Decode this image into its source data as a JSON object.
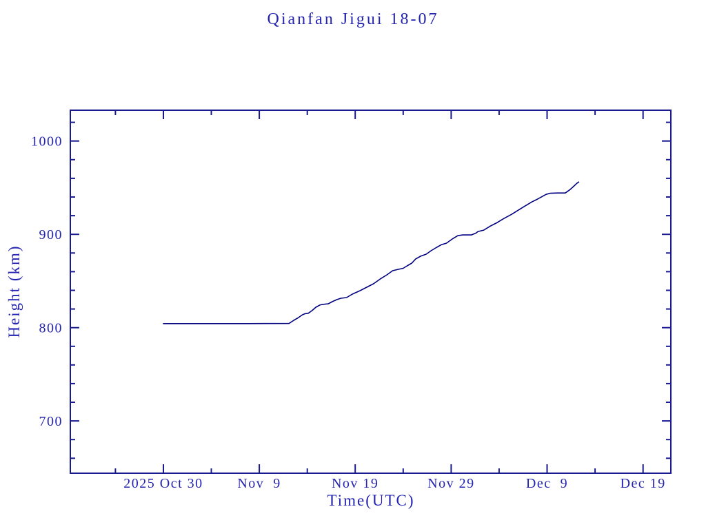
{
  "page": {
    "background": "#ffffff"
  },
  "chart": {
    "title": "Qianfan Jigui 18-07",
    "xlabel": "Time(UTC)",
    "ylabel": "Height (km)"
  },
  "colors": {
    "text": "#2424b0",
    "axis": "#1a1a90",
    "line": "#000080",
    "background": "#ffffff"
  },
  "chart_data": {
    "type": "line",
    "title": "Qianfan Jigui 18-07",
    "xlabel": "Time(UTC)",
    "ylabel": "Height (km)",
    "grid": false,
    "legend_position": "none",
    "x_axis": {
      "description": "t is in days relative to the first labeled tick (2025 Oct 30, UTC)",
      "range_days": [
        -9.7,
        52.9
      ],
      "major_ticks": [
        {
          "t": 0,
          "label": "2025 Oct 30"
        },
        {
          "t": 10,
          "label": "Nov  9"
        },
        {
          "t": 20,
          "label": "Nov 19"
        },
        {
          "t": 30,
          "label": "Nov 29"
        },
        {
          "t": 40,
          "label": "Dec  9"
        },
        {
          "t": 50,
          "label": "Dec 19"
        }
      ],
      "minor_ticks": [
        -5,
        5,
        15,
        25,
        35,
        45
      ]
    },
    "y_axis": {
      "unit": "km",
      "range": [
        644,
        1033
      ],
      "major_ticks": [
        700,
        800,
        900,
        1000
      ],
      "minor_ticks": [
        660,
        680,
        720,
        740,
        760,
        780,
        820,
        840,
        860,
        880,
        920,
        940,
        960,
        980,
        1020
      ]
    },
    "series": [
      {
        "name": "Height (km)",
        "points_t_h": [
          [
            0.0,
            804.3
          ],
          [
            4.5,
            804.3
          ],
          [
            8.8,
            804.3
          ],
          [
            13.1,
            804.5
          ],
          [
            13.6,
            807.9
          ],
          [
            14.1,
            810.9
          ],
          [
            14.5,
            813.8
          ],
          [
            14.8,
            815.0
          ],
          [
            15.1,
            815.4
          ],
          [
            15.5,
            818.3
          ],
          [
            15.9,
            821.9
          ],
          [
            16.3,
            824.2
          ],
          [
            16.6,
            824.9
          ],
          [
            17.2,
            825.6
          ],
          [
            17.6,
            827.8
          ],
          [
            18.1,
            830.1
          ],
          [
            18.5,
            831.5
          ],
          [
            19.1,
            832.2
          ],
          [
            19.7,
            835.9
          ],
          [
            20.5,
            839.6
          ],
          [
            21.2,
            843.3
          ],
          [
            21.9,
            847.0
          ],
          [
            22.6,
            852.1
          ],
          [
            23.3,
            856.6
          ],
          [
            23.9,
            861.0
          ],
          [
            24.5,
            862.5
          ],
          [
            25.0,
            863.6
          ],
          [
            25.4,
            866.2
          ],
          [
            25.9,
            869.1
          ],
          [
            26.3,
            873.6
          ],
          [
            26.8,
            876.5
          ],
          [
            27.4,
            878.7
          ],
          [
            27.9,
            882.4
          ],
          [
            28.5,
            886.1
          ],
          [
            29.0,
            889.0
          ],
          [
            29.5,
            890.5
          ],
          [
            30.1,
            894.9
          ],
          [
            30.7,
            898.6
          ],
          [
            31.2,
            899.3
          ],
          [
            32.1,
            899.3
          ],
          [
            32.6,
            901.5
          ],
          [
            32.8,
            903.0
          ],
          [
            33.4,
            904.5
          ],
          [
            34.1,
            908.9
          ],
          [
            34.8,
            912.6
          ],
          [
            35.5,
            917.0
          ],
          [
            36.3,
            921.4
          ],
          [
            37.0,
            925.9
          ],
          [
            37.7,
            930.3
          ],
          [
            38.4,
            934.7
          ],
          [
            39.0,
            937.7
          ],
          [
            39.5,
            940.6
          ],
          [
            39.9,
            942.8
          ],
          [
            40.3,
            944.0
          ],
          [
            41.1,
            944.3
          ],
          [
            41.9,
            944.3
          ],
          [
            42.4,
            948.0
          ],
          [
            42.8,
            951.7
          ],
          [
            43.1,
            954.6
          ],
          [
            43.3,
            956.1
          ]
        ]
      }
    ]
  }
}
